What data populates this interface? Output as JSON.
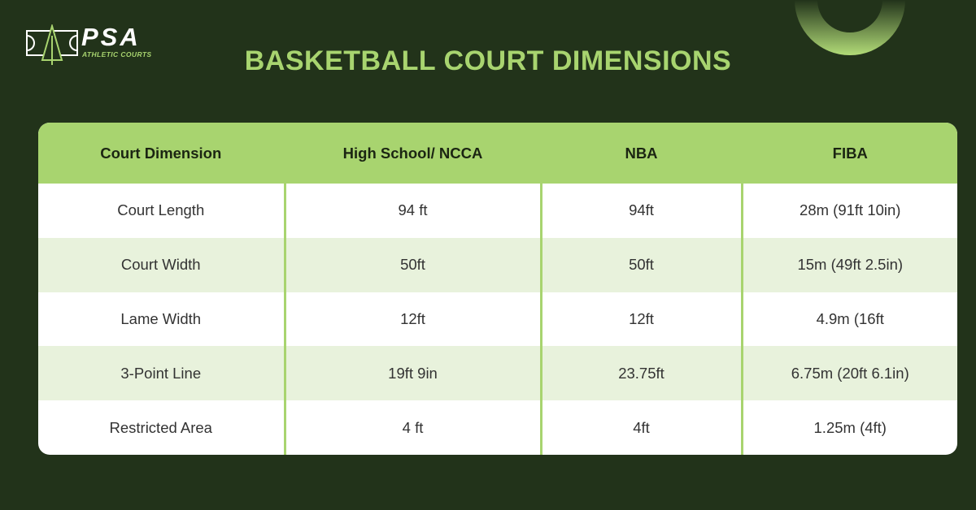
{
  "brand": {
    "name": "PSA",
    "tagline": "ATHLETIC COURTS"
  },
  "title": "BASKETBALL COURT DIMENSIONS",
  "colors": {
    "background": "#22331a",
    "accent": "#a8d46f",
    "row_alt": "#e8f2dc"
  },
  "table": {
    "headers": [
      "Court Dimension",
      "High School/ NCCA",
      "NBA",
      "FIBA"
    ],
    "rows": [
      [
        "Court Length",
        "94 ft",
        "94ft",
        "28m (91ft 10in)"
      ],
      [
        "Court Width",
        "50ft",
        "50ft",
        "15m (49ft 2.5in)"
      ],
      [
        "Lame Width",
        "12ft",
        "12ft",
        "4.9m (16ft"
      ],
      [
        "3-Point Line",
        "19ft 9in",
        "23.75ft",
        "6.75m (20ft 6.1in)"
      ],
      [
        "Restricted Area",
        "4 ft",
        "4ft",
        "1.25m (4ft)"
      ]
    ]
  }
}
